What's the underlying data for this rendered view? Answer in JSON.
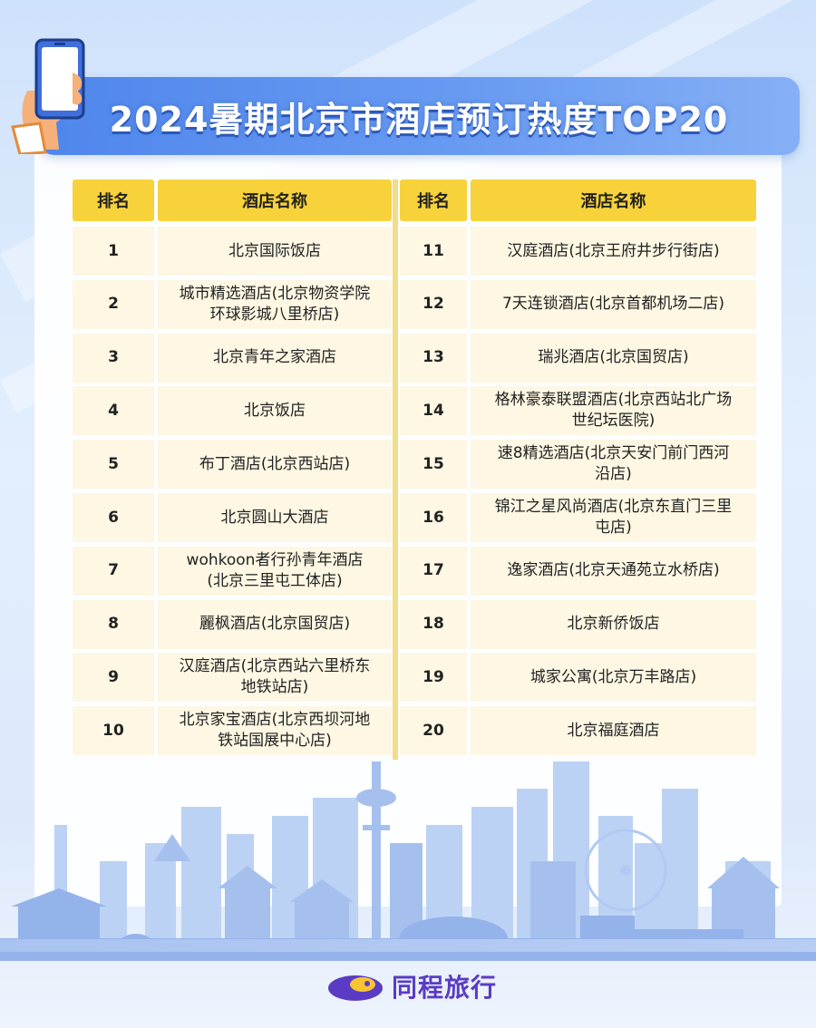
{
  "title": "2024暑期北京市酒店预订热度TOP20",
  "headers": {
    "rank": "排名",
    "hotel_name": "酒店名称"
  },
  "left_rows": [
    {
      "rank": "1",
      "name": "北京国际饭店"
    },
    {
      "rank": "2",
      "name": "城市精选酒店(北京物资学院环球影城八里桥店)"
    },
    {
      "rank": "3",
      "name": "北京青年之家酒店"
    },
    {
      "rank": "4",
      "name": "北京饭店"
    },
    {
      "rank": "5",
      "name": "布丁酒店(北京西站店)"
    },
    {
      "rank": "6",
      "name": "北京圆山大酒店"
    },
    {
      "rank": "7",
      "name": "wohkoon者行孙青年酒店(北京三里屯工体店)"
    },
    {
      "rank": "8",
      "name": "麗枫酒店(北京国贸店)"
    },
    {
      "rank": "9",
      "name": "汉庭酒店(北京西站六里桥东地铁站店)"
    },
    {
      "rank": "10",
      "name": "北京家宝酒店(北京西坝河地铁站国展中心店)"
    }
  ],
  "right_rows": [
    {
      "rank": "11",
      "name": "汉庭酒店(北京王府井步行街店)"
    },
    {
      "rank": "12",
      "name": "7天连锁酒店(北京首都机场二店)"
    },
    {
      "rank": "13",
      "name": "瑞兆酒店(北京国贸店)"
    },
    {
      "rank": "14",
      "name": "格林豪泰联盟酒店(北京西站北广场世纪坛医院)"
    },
    {
      "rank": "15",
      "name": "速8精选酒店(北京天安门前门西河沿店)"
    },
    {
      "rank": "16",
      "name": "锦江之星风尚酒店(北京东直门三里屯店)"
    },
    {
      "rank": "17",
      "name": "逸家酒店(北京天通苑立水桥店)"
    },
    {
      "rank": "18",
      "name": "北京新侨饭店"
    },
    {
      "rank": "19",
      "name": "城家公寓(北京万丰路店)"
    },
    {
      "rank": "20",
      "name": "北京福庭酒店"
    }
  ],
  "brand": {
    "name": "同程旅行",
    "color": "#5a3cc4"
  },
  "colors": {
    "header_yellow": "#f7d23a",
    "row_bg": "#fdf7e3",
    "title_blue": "#4f86ec"
  }
}
